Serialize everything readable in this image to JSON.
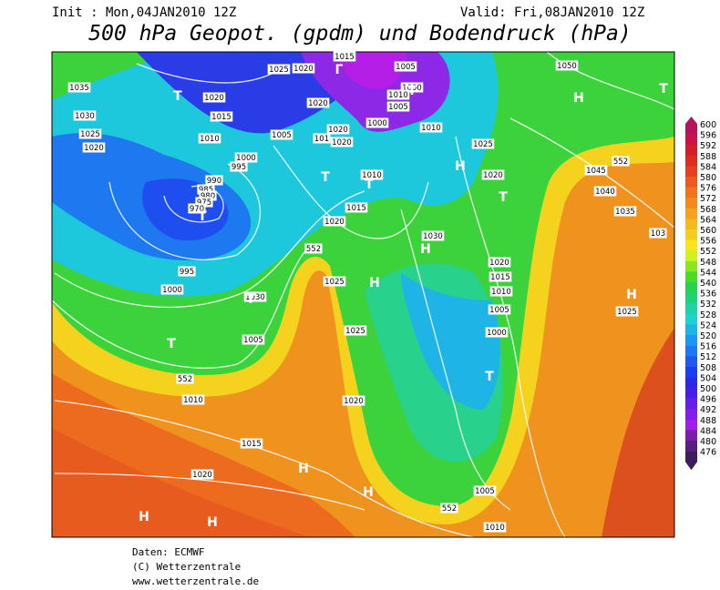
{
  "header": {
    "init": "Init : Mon,04JAN2010 12Z",
    "valid": "Valid: Fri,08JAN2010 12Z",
    "title": "500 hPa Geopot. (gpdm) und Bodendruck (hPa)"
  },
  "map": {
    "pressure_labels": [
      1035,
      1030,
      1025,
      1020,
      1025,
      1020,
      1015,
      1005,
      1000,
      1010,
      1005,
      1020,
      1020,
      101,
      1020,
      1000,
      1010,
      1020,
      1015,
      1010,
      1005,
      1000,
      995,
      990,
      985,
      980,
      975,
      970,
      1010,
      1015,
      1020,
      1025,
      1020,
      1030,
      995,
      1000,
      1030,
      1025,
      1005,
      1025,
      1020,
      1015,
      1010,
      1005,
      1000,
      1020,
      1010,
      1015,
      1020,
      1005,
      1010,
      1050,
      1045,
      1040,
      1035,
      103,
      1025
    ],
    "height_labels": [
      552,
      552,
      552,
      552
    ],
    "centers": [
      "T",
      "Г",
      "T",
      "T",
      "T",
      "T",
      "H",
      "T",
      "H",
      "H",
      "T",
      "T",
      "H",
      "H",
      "H",
      "H",
      "H",
      "T",
      "H",
      "T"
    ]
  },
  "scale": {
    "values": [
      600,
      596,
      592,
      588,
      584,
      580,
      576,
      572,
      568,
      564,
      560,
      556,
      552,
      548,
      544,
      540,
      536,
      532,
      528,
      524,
      520,
      516,
      512,
      508,
      504,
      500,
      496,
      492,
      488,
      484,
      480,
      476
    ],
    "colors": [
      "#b4145a",
      "#c81446",
      "#d21e28",
      "#dc2d1e",
      "#e6411e",
      "#eb5a1e",
      "#f0731e",
      "#f08c1e",
      "#f5a01e",
      "#f5b91e",
      "#f5cd1e",
      "#f5e61e",
      "#d2f01e",
      "#8ce61e",
      "#46dc28",
      "#28d250",
      "#1ed278",
      "#1ed2aa",
      "#1ed2d2",
      "#1eb4e6",
      "#1e96f0",
      "#1e78f0",
      "#1e5af0",
      "#1e3cf0",
      "#2828e6",
      "#461ee6",
      "#641ee6",
      "#821ee6",
      "#a01ee6",
      "#781eaa",
      "#5a1e82",
      "#3c1e5a"
    ]
  },
  "footer": [
    "Daten: ECMWF",
    "(C) Wetterzentrale",
    "www.wetterzentrale.de"
  ]
}
